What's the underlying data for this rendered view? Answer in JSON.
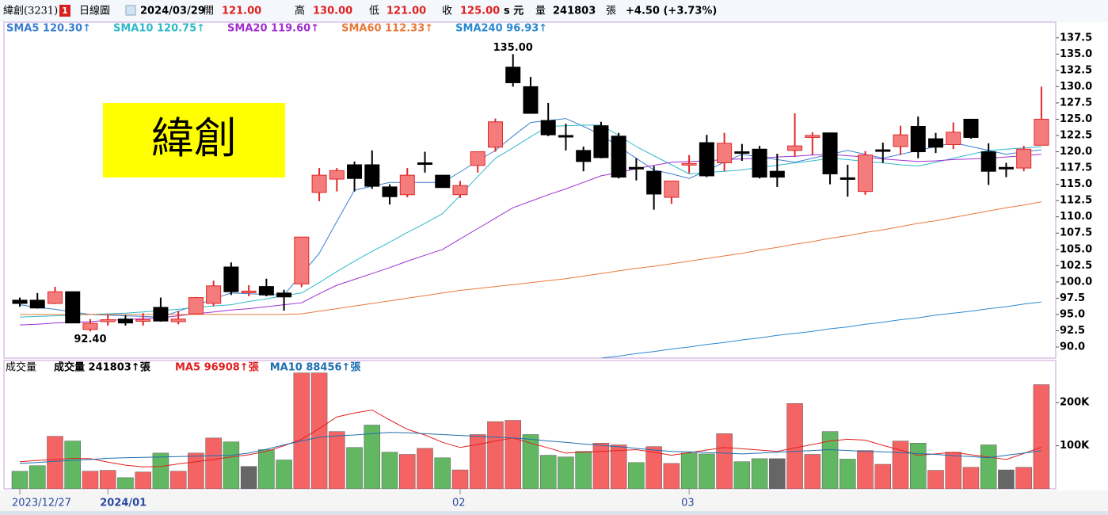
{
  "header": {
    "name": "緯創(3231)",
    "badge": "1",
    "period": "日線圖",
    "date": "2024/03/29",
    "open_label": "開",
    "open": "121.00",
    "high_label": "高",
    "high": "130.00",
    "low_label": "低",
    "low": "121.00",
    "close_label": "收",
    "close": "125.00",
    "unit": "s 元",
    "volume_label": "量",
    "volume": "241803",
    "volume_unit": "張",
    "change": "+4.50 (+3.73%)"
  },
  "logo": "緯創",
  "chart_data": [
    {
      "type": "candlestick",
      "categories": [
        "2023/12/27",
        null,
        null,
        null,
        null,
        "2024/01",
        null,
        null,
        null,
        null,
        null,
        null,
        null,
        null,
        null,
        null,
        null,
        null,
        null,
        null,
        null,
        null,
        null,
        null,
        null,
        "02",
        null,
        null,
        null,
        null,
        null,
        null,
        null,
        null,
        null,
        null,
        null,
        null,
        "03",
        null,
        null,
        null,
        null,
        null,
        null,
        null,
        null,
        null,
        null,
        null,
        null,
        null,
        null,
        null,
        null,
        null,
        null,
        null,
        null
      ],
      "open": [
        97.2,
        97.2,
        96.7,
        98.5,
        92.7,
        93.9,
        94.3,
        94.0,
        96.1,
        93.9,
        95.1,
        96.7,
        102.3,
        98.4,
        99.3,
        98.3,
        99.7,
        113.75,
        115.8,
        118.0,
        118.0,
        114.6,
        113.4,
        118.3,
        116.4,
        113.4,
        117.9,
        120.7,
        133.0,
        130.0,
        124.8,
        122.5,
        120.2,
        124.0,
        122.4,
        117.6,
        117.0,
        113.0,
        118.1,
        121.4,
        118.3,
        120.0,
        120.4,
        117.0,
        120.2,
        122.2,
        122.9,
        116.0,
        113.9,
        120.3,
        120.8,
        123.9,
        122.0,
        121.1,
        125.0,
        120.0,
        117.6,
        117.5,
        121.0
      ],
      "high": [
        97.6,
        98.3,
        99.25,
        98.5,
        94.3,
        95.0,
        94.9,
        95.2,
        97.6,
        95.5,
        97.7,
        100.2,
        103.0,
        99.5,
        100.5,
        98.8,
        106.9,
        117.5,
        117.5,
        118.5,
        120.2,
        115.0,
        117.5,
        120.0,
        116.4,
        115.5,
        120.0,
        125.1,
        135.0,
        131.5,
        127.5,
        124.3,
        120.8,
        124.6,
        122.9,
        119.0,
        117.8,
        115.5,
        119.5,
        122.6,
        122.9,
        121.2,
        120.9,
        119.7,
        125.9,
        123.0,
        122.9,
        118.0,
        120.1,
        121.4,
        124.0,
        125.4,
        122.9,
        124.5,
        125.0,
        121.3,
        118.3,
        120.9,
        130.0
      ],
      "low": [
        96.2,
        95.9,
        96.6,
        93.7,
        92.4,
        93.3,
        93.3,
        93.3,
        93.9,
        93.5,
        95.0,
        96.3,
        98.0,
        97.8,
        97.8,
        95.6,
        99.2,
        112.4,
        113.9,
        113.9,
        114.3,
        111.9,
        113.0,
        116.8,
        114.5,
        112.9,
        116.8,
        120.0,
        130.0,
        125.9,
        122.4,
        120.2,
        117.0,
        119.0,
        115.9,
        115.6,
        111.1,
        112.0,
        116.7,
        116.1,
        117.0,
        118.6,
        115.9,
        114.6,
        119.2,
        119.5,
        115.0,
        113.1,
        113.4,
        118.3,
        119.5,
        119.0,
        119.8,
        120.4,
        122.0,
        114.9,
        116.1,
        117.0,
        121.0
      ],
      "close": [
        96.7,
        96.0,
        98.5,
        93.7,
        93.65,
        94.2,
        93.7,
        94.2,
        94.0,
        94.3,
        97.6,
        99.4,
        98.5,
        98.6,
        98.0,
        97.7,
        106.9,
        116.4,
        117.1,
        115.9,
        114.7,
        113.1,
        116.4,
        118.2,
        114.5,
        114.8,
        120.0,
        124.6,
        130.6,
        125.9,
        122.6,
        122.4,
        118.5,
        119.1,
        116.1,
        117.5,
        113.5,
        115.5,
        118.2,
        116.3,
        121.3,
        119.9,
        116.1,
        116.1,
        120.9,
        122.5,
        116.6,
        115.9,
        119.5,
        120.2,
        122.6,
        120.0,
        120.7,
        123.0,
        122.2,
        117.0,
        117.5,
        120.4,
        125.0
      ],
      "up_color": "#f47c7c",
      "up_border": "#e02828",
      "down_color": "#000000",
      "series": [
        {
          "name": "SMA5 120.30↑",
          "color": "#3b7fd0",
          "values": [
            96.5,
            96.1,
            95.8,
            95.4,
            95.0,
            94.9,
            94.8,
            94.7,
            94.6,
            95.5,
            96.4,
            97.4,
            98.3,
            98.2,
            98.1,
            98.0,
            101.2,
            104.4,
            109.3,
            114.1,
            114.7,
            115.3,
            115.3,
            115.3,
            115.3,
            116.9,
            118.6,
            120.2,
            122.4,
            124.5,
            124.8,
            125.1,
            123.9,
            122.6,
            120.8,
            119.0,
            117.2,
            116.6,
            115.9,
            117.1,
            118.4,
            119.6,
            119.2,
            118.8,
            118.4,
            119.0,
            119.6,
            120.2,
            119.6,
            119.0,
            119.6,
            120.2,
            120.8,
            121.4,
            120.8,
            120.2,
            119.6,
            120.0,
            120.3
          ]
        },
        {
          "name": "SMA10 120.75↑",
          "color": "#2fb9c9",
          "values": [
            94.6,
            94.7,
            94.8,
            94.9,
            95.0,
            95.1,
            95.2,
            95.4,
            95.6,
            95.8,
            96.1,
            96.3,
            96.5,
            97.0,
            97.4,
            97.9,
            98.3,
            99.9,
            101.6,
            103.2,
            104.7,
            106.1,
            107.6,
            109.0,
            110.5,
            113.3,
            116.2,
            119.0,
            120.6,
            122.3,
            123.9,
            124.0,
            124.1,
            124.1,
            122.5,
            120.8,
            119.4,
            118.0,
            116.6,
            116.8,
            117.0,
            117.2,
            117.6,
            117.9,
            118.3,
            118.6,
            119.0,
            118.8,
            118.5,
            118.3,
            118.0,
            117.8,
            118.4,
            119.0,
            119.6,
            120.2,
            120.4,
            120.6,
            120.75
          ]
        },
        {
          "name": "SMA20 119.60↑",
          "color": "#a030d0",
          "values": [
            93.4,
            93.5,
            93.7,
            93.8,
            93.9,
            94.1,
            94.2,
            94.4,
            94.5,
            94.8,
            95.1,
            95.4,
            95.7,
            95.9,
            96.2,
            96.5,
            96.8,
            98.2,
            99.5,
            100.4,
            101.3,
            102.2,
            103.2,
            104.1,
            105.0,
            106.6,
            108.2,
            109.8,
            111.4,
            112.4,
            113.4,
            114.3,
            115.3,
            116.3,
            116.8,
            117.4,
            117.9,
            118.4,
            118.5,
            118.6,
            118.8,
            118.9,
            119.0,
            119.2,
            119.3,
            119.5,
            119.6,
            119.4,
            119.2,
            118.9,
            118.7,
            118.5,
            118.6,
            118.8,
            118.9,
            119.0,
            119.2,
            119.4,
            119.6
          ]
        },
        {
          "name": "SMA60 112.33↑",
          "color": "#e8793a",
          "values": [
            95.0,
            95.0,
            95.0,
            95.0,
            95.0,
            95.0,
            95.0,
            95.0,
            95.0,
            95.0,
            95.0,
            95.0,
            95.0,
            95.0,
            95.0,
            95.0,
            95.1,
            95.5,
            95.9,
            96.3,
            96.7,
            97.1,
            97.5,
            97.9,
            98.3,
            98.7,
            99.0,
            99.3,
            99.6,
            99.9,
            100.2,
            100.5,
            100.9,
            101.3,
            101.7,
            102.1,
            102.4,
            102.8,
            103.2,
            103.6,
            104.0,
            104.4,
            104.9,
            105.3,
            105.8,
            106.2,
            106.7,
            107.1,
            107.6,
            108.0,
            108.5,
            109.0,
            109.4,
            109.9,
            110.4,
            110.9,
            111.4,
            111.8,
            112.33
          ]
        },
        {
          "name": "SMA240 96.93↑",
          "color": "#2a8ad0",
          "values": [
            null,
            null,
            null,
            null,
            null,
            null,
            null,
            null,
            null,
            null,
            null,
            null,
            null,
            null,
            null,
            null,
            null,
            null,
            null,
            null,
            null,
            null,
            null,
            null,
            null,
            null,
            null,
            null,
            null,
            null,
            null,
            null,
            null,
            88.3,
            88.6,
            89.0,
            89.3,
            89.7,
            90.0,
            90.4,
            90.7,
            91.1,
            91.4,
            91.8,
            92.1,
            92.4,
            92.8,
            93.1,
            93.5,
            93.8,
            94.2,
            94.5,
            94.9,
            95.2,
            95.5,
            95.9,
            96.2,
            96.6,
            96.93
          ]
        }
      ],
      "ylim": [
        88.3,
        138.2
      ],
      "yticks": [
        137.5,
        {
          "value": 135,
          "label": "135.0"
        },
        132.5,
        {
          "value": 130,
          "label": "130.0"
        },
        127.5,
        {
          "value": 125,
          "label": "125.0"
        },
        122.5,
        {
          "value": 120,
          "label": "120.0"
        },
        117.5,
        {
          "value": 115,
          "label": "115.0"
        },
        112.5,
        {
          "value": 110,
          "label": "110.0"
        },
        107.5,
        {
          "value": 105,
          "label": "105.0"
        },
        102.5,
        {
          "value": 100,
          "label": "100.0"
        },
        97.5,
        {
          "value": 95,
          "label": "95.0"
        },
        92.5,
        {
          "value": 90,
          "label": "90.0"
        }
      ],
      "annotations": [
        "135.00",
        "92.40"
      ]
    },
    {
      "type": "bar",
      "title": "成交量",
      "legend": "成交量 241803↑張",
      "values": [
        40700,
        53700,
        122000,
        111000,
        41000,
        43000,
        26000,
        39000,
        83000,
        41000,
        83000,
        118000,
        109000,
        52000,
        91000,
        67000,
        269000,
        269000,
        133000,
        96000,
        148000,
        85000,
        80000,
        94000,
        72000,
        44000,
        126000,
        156000,
        159000,
        126000,
        78000,
        74000,
        87000,
        106000,
        102000,
        61000,
        98000,
        59000,
        83000,
        81000,
        128000,
        63000,
        70000,
        70000,
        198000,
        80000,
        133000,
        69000,
        89000,
        57000,
        111000,
        106000,
        43000,
        85000,
        50000,
        102000,
        44000,
        50000,
        241803
      ],
      "colors": [
        "#62b862",
        "#62b862",
        "#f56464",
        "#62b862",
        "#f56464",
        "#f56464",
        "#62b862",
        "#f56464",
        "#62b862",
        "#f56464",
        "#f56464",
        "#f56464",
        "#62b862",
        "#666666",
        "#62b862",
        "#62b862",
        "#f56464",
        "#f56464",
        "#f56464",
        "#62b862",
        "#62b862",
        "#62b862",
        "#f56464",
        "#f56464",
        "#62b862",
        "#f56464",
        "#f56464",
        "#f56464",
        "#f56464",
        "#62b862",
        "#62b862",
        "#62b862",
        "#62b862",
        "#f56464",
        "#f56464",
        "#62b862",
        "#f56464",
        "#f56464",
        "#62b862",
        "#62b862",
        "#f56464",
        "#62b862",
        "#62b862",
        "#666666",
        "#f56464",
        "#f56464",
        "#62b862",
        "#62b862",
        "#f56464",
        "#f56464",
        "#f56464",
        "#62b862",
        "#f56464",
        "#f56464",
        "#f56464",
        "#62b862",
        "#666666",
        "#f56464",
        "#f56464"
      ],
      "series": [
        {
          "name": "MA5 96908↑張",
          "color": "#e02020",
          "values": [
            63000,
            66000,
            68000,
            71000,
            70000,
            62000,
            55000,
            51000,
            52000,
            58000,
            63000,
            68000,
            74000,
            79000,
            87000,
            100000,
            115000,
            140000,
            167000,
            176000,
            183000,
            160000,
            138000,
            125000,
            108000,
            96000,
            103000,
            111000,
            118000,
            106000,
            95000,
            83000,
            85000,
            87000,
            89000,
            91000,
            85000,
            78000,
            84000,
            90000,
            96000,
            93000,
            90000,
            87000,
            95000,
            103000,
            111000,
            115000,
            113000,
            101000,
            90000,
            78000,
            81000,
            85000,
            79000,
            74000,
            68000,
            82000,
            96908
          ]
        },
        {
          "name": "MA10 88456↑張",
          "color": "#1f6fb0",
          "values": [
            59000,
            61000,
            64000,
            66000,
            68000,
            71000,
            72000,
            73000,
            74000,
            75000,
            76000,
            77000,
            78000,
            83000,
            92000,
            102000,
            111000,
            120000,
            123000,
            125000,
            128000,
            131000,
            130000,
            128000,
            126000,
            124000,
            122000,
            120000,
            118000,
            115000,
            111000,
            108000,
            104000,
            101000,
            98000,
            94000,
            90000,
            87000,
            86000,
            84000,
            83000,
            81000,
            83000,
            85000,
            87000,
            89000,
            91000,
            89000,
            87000,
            86000,
            84000,
            82000,
            80000,
            77000,
            75000,
            72000,
            78000,
            83000,
            88456
          ]
        }
      ],
      "ylim": [
        0,
        296000
      ],
      "yticks": [
        {
          "value": 100000,
          "label": "100K"
        },
        {
          "value": 200000,
          "label": "200K"
        }
      ]
    }
  ]
}
